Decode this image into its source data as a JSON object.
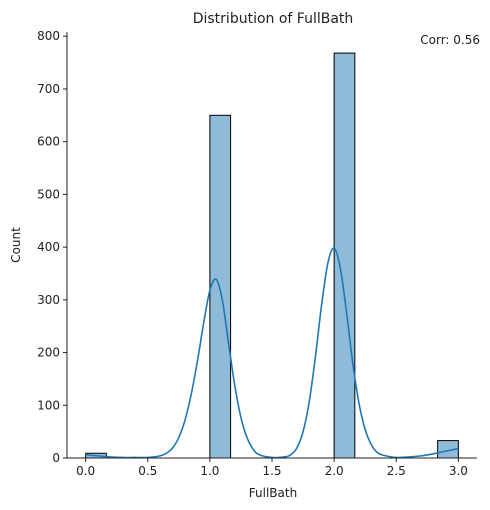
{
  "chart_data": {
    "type": "bar",
    "title": "Distribution of FullBath",
    "annotation": "Corr: 0.56",
    "xlabel": "FullBath",
    "ylabel": "Count",
    "xlim": [
      -0.15,
      3.15
    ],
    "ylim": [
      0,
      808
    ],
    "x_ticks": [
      0.0,
      0.5,
      1.0,
      1.5,
      2.0,
      2.5,
      3.0
    ],
    "x_tick_labels": [
      "0.0",
      "0.5",
      "1.0",
      "1.5",
      "2.0",
      "2.5",
      "3.0"
    ],
    "y_ticks": [
      0,
      100,
      200,
      300,
      400,
      500,
      600,
      700,
      800
    ],
    "y_tick_labels": [
      "0",
      "100",
      "200",
      "300",
      "400",
      "500",
      "600",
      "700",
      "800"
    ],
    "bins": [
      {
        "x0": 0.0,
        "x1": 0.1667,
        "count": 9
      },
      {
        "x0": 1.0,
        "x1": 1.1667,
        "count": 650
      },
      {
        "x0": 2.0,
        "x1": 2.1667,
        "count": 768
      },
      {
        "x0": 2.8333,
        "x1": 3.0,
        "count": 33
      }
    ],
    "kde": {
      "x": [
        0.0,
        0.1,
        0.2,
        0.3,
        0.4,
        0.5,
        0.6,
        0.65,
        0.7,
        0.75,
        0.8,
        0.85,
        0.9,
        0.95,
        1.0,
        1.05,
        1.1,
        1.15,
        1.2,
        1.25,
        1.3,
        1.35,
        1.4,
        1.5,
        1.6,
        1.65,
        1.7,
        1.75,
        1.8,
        1.85,
        1.9,
        1.95,
        2.0,
        2.05,
        2.1,
        2.15,
        2.2,
        2.25,
        2.3,
        2.35,
        2.4,
        2.5,
        2.6,
        2.7,
        2.8,
        2.9,
        3.0
      ],
      "y": [
        6,
        4,
        2,
        1,
        1,
        1,
        4,
        9,
        19,
        39,
        72,
        121,
        184,
        256,
        318,
        339,
        300,
        218,
        138,
        77,
        38,
        16,
        6,
        1,
        2,
        6,
        19,
        50,
        107,
        193,
        292,
        370,
        398,
        360,
        276,
        180,
        104,
        54,
        25,
        10,
        5,
        1,
        2,
        4,
        8,
        13,
        18
      ]
    },
    "colors": {
      "bar_fill": "#8fbbd9",
      "bar_edge": "#000000",
      "kde_line": "#1f77b4",
      "axis": "#222222"
    },
    "grid": false,
    "legend": "none"
  }
}
